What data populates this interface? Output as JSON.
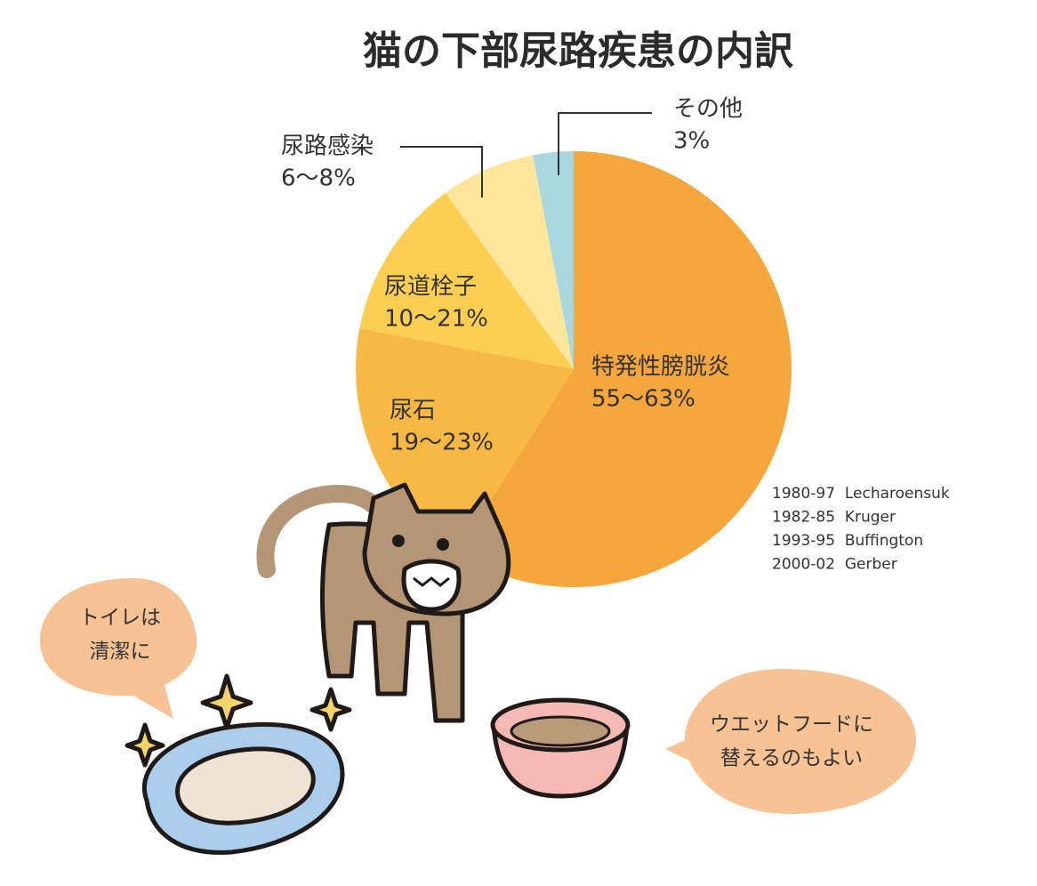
{
  "chart_data": {
    "type": "pie",
    "title": "猫の下部尿路疾患の内訳",
    "categories": [
      "特発性膀胱炎",
      "尿石",
      "尿道栓子",
      "尿路感染",
      "その他"
    ],
    "values": [
      59,
      19,
      12,
      7,
      3
    ],
    "value_labels": [
      "55～63%",
      "19～23%",
      "10～21%",
      "6～8%",
      "3%"
    ],
    "colors": [
      "#f5a63c",
      "#f8b944",
      "#fccf52",
      "#fde69a",
      "#a8d8df"
    ],
    "notes": [
      "1980-97  Lecharoensuk",
      "1982-85  Kruger",
      "1993-95  Buffington",
      "2000-02  Gerber"
    ],
    "annotations": [
      {
        "lines": [
          "トイレは",
          "清潔に"
        ]
      },
      {
        "lines": [
          "ウエットフードに",
          "替えるのもよい"
        ]
      }
    ]
  }
}
